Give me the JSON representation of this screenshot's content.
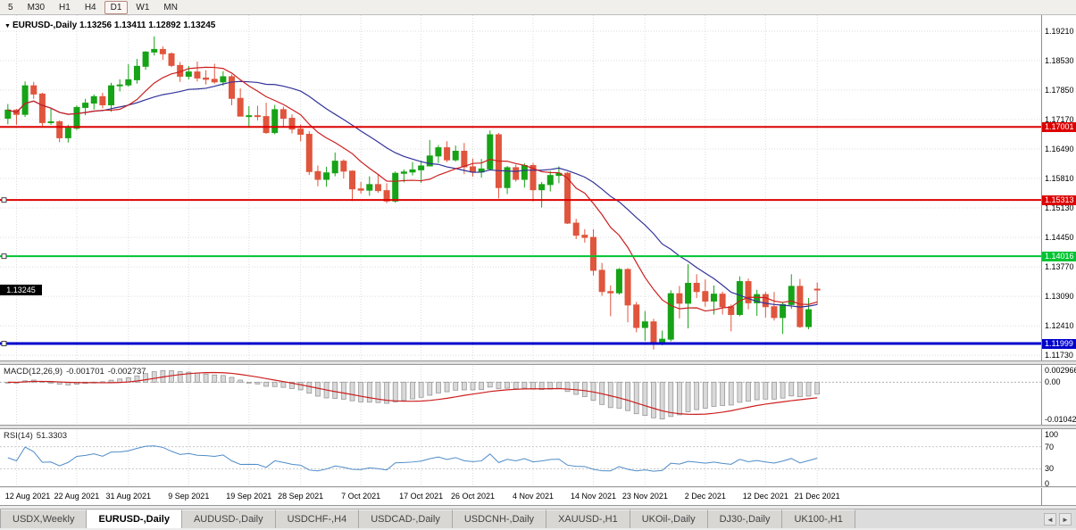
{
  "icons": {
    "caret": "▼",
    "tab_scroll_left": "◄",
    "tab_scroll_right": "►"
  },
  "toolbar": {
    "timeframes": [
      "5",
      "M30",
      "H1",
      "H4",
      "D1",
      "W1",
      "MN"
    ],
    "active": "D1"
  },
  "header": {
    "symbol_text": "EURUSD-,Daily",
    "values_text": "1.13256 1.13411 1.12892 1.13245"
  },
  "colors": {
    "up": "#17a317",
    "down": "#e0553d",
    "ma_fast": "#cc1f1f",
    "ma_slow": "#32329b",
    "macd_hist_fill": "#d9d9d9",
    "macd_hist_stroke": "#989898",
    "macd_signal": "#cc1f1f",
    "rsi_line": "#4f8cc8",
    "grid": "#dcdcdc",
    "badge_black": "#000000"
  },
  "chart_data": {
    "type": "candlestick",
    "symbol": "EURUSD-",
    "timeframe": "Daily",
    "last_bar": {
      "open": "1.13256",
      "high": "1.13411",
      "low": "1.12892",
      "close": "1.13245"
    },
    "current_price": 1.13245,
    "price_ticks": [
      "1.19210",
      "1.18530",
      "1.17850",
      "1.17170",
      "1.16490",
      "1.15810",
      "1.15130",
      "1.14450",
      "1.13770",
      "1.13090",
      "1.12410",
      "1.11730"
    ],
    "x_labels": [
      {
        "text": "12 Aug 2021",
        "i": 1
      },
      {
        "text": "22 Aug 2021",
        "i": 8
      },
      {
        "text": "31 Aug 2021",
        "i": 14
      },
      {
        "text": "9 Sep 2021",
        "i": 21
      },
      {
        "text": "19 Sep 2021",
        "i": 28
      },
      {
        "text": "28 Sep 2021",
        "i": 34
      },
      {
        "text": "7 Oct 2021",
        "i": 41
      },
      {
        "text": "17 Oct 2021",
        "i": 48
      },
      {
        "text": "26 Oct 2021",
        "i": 54
      },
      {
        "text": "4 Nov 2021",
        "i": 61
      },
      {
        "text": "14 Nov 2021",
        "i": 68
      },
      {
        "text": "23 Nov 2021",
        "i": 74
      },
      {
        "text": "2 Dec 2021",
        "i": 81
      },
      {
        "text": "12 Dec 2021",
        "i": 88
      },
      {
        "text": "21 Dec 2021",
        "i": 94
      }
    ],
    "horizontal_lines": [
      {
        "price": 1.17001,
        "label": "1.17001",
        "color": "#dd0000",
        "width": 2,
        "handles": false
      },
      {
        "price": 1.15313,
        "label": "1.15313",
        "color": "#dd0000",
        "width": 2,
        "handles": true
      },
      {
        "price": 1.14016,
        "label": "1.14016",
        "color": "#00c433",
        "width": 2,
        "handles": true
      },
      {
        "price": 1.11999,
        "label": "1.11999",
        "color": "#0000cc",
        "width": 3,
        "handles": true
      }
    ],
    "moving_averages": [
      {
        "period": 10,
        "color": "#cc1f1f"
      },
      {
        "period": 20,
        "color": "#32329b"
      }
    ],
    "macd": {
      "label": "MACD(12,26,9)",
      "value": "-0.001701",
      "signal_value": "-0.002737",
      "axis_max": "0.002966",
      "axis_zero": "0.00",
      "axis_min": "-0.01042"
    },
    "rsi": {
      "label": "RSI(14)",
      "value": "51.3303",
      "levels": [
        70,
        30
      ],
      "axis_labels": [
        "100",
        "70",
        "30",
        "0"
      ]
    },
    "ohlc_format": [
      "open",
      "high",
      "low",
      "close"
    ],
    "ohlc": [
      [
        1.172,
        1.1753,
        1.1706,
        1.1739
      ],
      [
        1.1739,
        1.1742,
        1.1705,
        1.1729
      ],
      [
        1.1729,
        1.1805,
        1.1723,
        1.1795
      ],
      [
        1.1795,
        1.1804,
        1.1765,
        1.1776
      ],
      [
        1.1776,
        1.1779,
        1.1702,
        1.171
      ],
      [
        1.171,
        1.1742,
        1.1705,
        1.1712
      ],
      [
        1.1712,
        1.1715,
        1.1665,
        1.1675
      ],
      [
        1.1675,
        1.1705,
        1.1664,
        1.1697
      ],
      [
        1.1697,
        1.175,
        1.1693,
        1.1745
      ],
      [
        1.1745,
        1.1765,
        1.1727,
        1.1755
      ],
      [
        1.1755,
        1.1775,
        1.174,
        1.177
      ],
      [
        1.177,
        1.1779,
        1.1743,
        1.1751
      ],
      [
        1.1751,
        1.1802,
        1.1735,
        1.1795
      ],
      [
        1.1795,
        1.181,
        1.1782,
        1.1797
      ],
      [
        1.1797,
        1.1845,
        1.1793,
        1.1809
      ],
      [
        1.1809,
        1.1857,
        1.18,
        1.184
      ],
      [
        1.184,
        1.1875,
        1.1832,
        1.1873
      ],
      [
        1.1873,
        1.1909,
        1.1865,
        1.1879
      ],
      [
        1.1879,
        1.1886,
        1.1855,
        1.1869
      ],
      [
        1.1869,
        1.1872,
        1.1838,
        1.1842
      ],
      [
        1.1842,
        1.185,
        1.1804,
        1.1817
      ],
      [
        1.1817,
        1.1841,
        1.181,
        1.1827
      ],
      [
        1.1827,
        1.1851,
        1.1805,
        1.1813
      ],
      [
        1.1813,
        1.1831,
        1.1798,
        1.181
      ],
      [
        1.181,
        1.1846,
        1.18,
        1.1804
      ],
      [
        1.1804,
        1.1829,
        1.1795,
        1.1816
      ],
      [
        1.1816,
        1.1821,
        1.175,
        1.1766
      ],
      [
        1.1766,
        1.1789,
        1.1724,
        1.1725
      ],
      [
        1.1725,
        1.1748,
        1.17,
        1.1726
      ],
      [
        1.1726,
        1.1749,
        1.1715,
        1.1724
      ],
      [
        1.1724,
        1.1756,
        1.1684,
        1.1687
      ],
      [
        1.1687,
        1.1751,
        1.1683,
        1.174
      ],
      [
        1.174,
        1.1747,
        1.1701,
        1.172
      ],
      [
        1.172,
        1.1729,
        1.1685,
        1.1695
      ],
      [
        1.1695,
        1.1706,
        1.1667,
        1.1683
      ],
      [
        1.1683,
        1.169,
        1.1589,
        1.1597
      ],
      [
        1.1597,
        1.1611,
        1.1563,
        1.1579
      ],
      [
        1.1579,
        1.1608,
        1.1562,
        1.1594
      ],
      [
        1.1594,
        1.1641,
        1.1586,
        1.1621
      ],
      [
        1.1621,
        1.1625,
        1.1581,
        1.1598
      ],
      [
        1.1598,
        1.16,
        1.1529,
        1.1557
      ],
      [
        1.1557,
        1.1573,
        1.1546,
        1.1554
      ],
      [
        1.1554,
        1.1586,
        1.1541,
        1.1567
      ],
      [
        1.1567,
        1.1591,
        1.1548,
        1.1553
      ],
      [
        1.1553,
        1.157,
        1.1524,
        1.1529
      ],
      [
        1.1529,
        1.1597,
        1.1525,
        1.1593
      ],
      [
        1.1593,
        1.1602,
        1.1572,
        1.1596
      ],
      [
        1.1596,
        1.1619,
        1.1588,
        1.1601
      ],
      [
        1.1601,
        1.1622,
        1.1571,
        1.161
      ],
      [
        1.161,
        1.167,
        1.1609,
        1.1633
      ],
      [
        1.1633,
        1.1658,
        1.1617,
        1.1652
      ],
      [
        1.1652,
        1.1667,
        1.1619,
        1.1624
      ],
      [
        1.1624,
        1.1657,
        1.162,
        1.1644
      ],
      [
        1.1644,
        1.1663,
        1.1591,
        1.1608
      ],
      [
        1.1608,
        1.1627,
        1.1585,
        1.1596
      ],
      [
        1.1596,
        1.1626,
        1.1583,
        1.1603
      ],
      [
        1.1603,
        1.1692,
        1.1601,
        1.1682
      ],
      [
        1.1682,
        1.1686,
        1.1535,
        1.156
      ],
      [
        1.156,
        1.161,
        1.1545,
        1.1606
      ],
      [
        1.1606,
        1.1613,
        1.1574,
        1.1579
      ],
      [
        1.1579,
        1.1616,
        1.156,
        1.1611
      ],
      [
        1.1611,
        1.1617,
        1.1528,
        1.1555
      ],
      [
        1.1555,
        1.1573,
        1.1514,
        1.1567
      ],
      [
        1.1567,
        1.1598,
        1.1551,
        1.1588
      ],
      [
        1.1588,
        1.1609,
        1.157,
        1.1593
      ],
      [
        1.1593,
        1.1596,
        1.1476,
        1.1478
      ],
      [
        1.1478,
        1.1488,
        1.1441,
        1.145
      ],
      [
        1.145,
        1.1464,
        1.1433,
        1.1445
      ],
      [
        1.1445,
        1.1464,
        1.1357,
        1.1369
      ],
      [
        1.1369,
        1.1386,
        1.131,
        1.132
      ],
      [
        1.132,
        1.1334,
        1.1263,
        1.1317
      ],
      [
        1.1317,
        1.1374,
        1.1313,
        1.1371
      ],
      [
        1.1371,
        1.1374,
        1.1249,
        1.1289
      ],
      [
        1.1289,
        1.1296,
        1.1226,
        1.1237
      ],
      [
        1.1237,
        1.1275,
        1.1206,
        1.125
      ],
      [
        1.125,
        1.1257,
        1.1186,
        1.12
      ],
      [
        1.12,
        1.123,
        1.1196,
        1.121
      ],
      [
        1.121,
        1.1323,
        1.1205,
        1.1315
      ],
      [
        1.1315,
        1.1333,
        1.1258,
        1.1293
      ],
      [
        1.1293,
        1.1383,
        1.1235,
        1.1339
      ],
      [
        1.1339,
        1.136,
        1.1305,
        1.132
      ],
      [
        1.132,
        1.1348,
        1.1285,
        1.1298
      ],
      [
        1.1298,
        1.1334,
        1.1267,
        1.1314
      ],
      [
        1.1314,
        1.132,
        1.1267,
        1.1285
      ],
      [
        1.1285,
        1.129,
        1.1228,
        1.1267
      ],
      [
        1.1267,
        1.1355,
        1.1263,
        1.1343
      ],
      [
        1.1343,
        1.135,
        1.1279,
        1.1294
      ],
      [
        1.1294,
        1.1324,
        1.1264,
        1.1313
      ],
      [
        1.1313,
        1.1319,
        1.126,
        1.1285
      ],
      [
        1.1285,
        1.1319,
        1.1253,
        1.126
      ],
      [
        1.126,
        1.1296,
        1.1222,
        1.129
      ],
      [
        1.129,
        1.136,
        1.128,
        1.1332
      ],
      [
        1.1332,
        1.1349,
        1.1236,
        1.1239
      ],
      [
        1.1239,
        1.1305,
        1.1233,
        1.1278
      ],
      [
        1.13256,
        1.13411,
        1.12892,
        1.13245
      ]
    ]
  },
  "tabs": {
    "items": [
      {
        "label": "USDX,Weekly"
      },
      {
        "label": "EURUSD-,Daily",
        "active": true
      },
      {
        "label": "AUDUSD-,Daily"
      },
      {
        "label": "USDCHF-,H4"
      },
      {
        "label": "USDCAD-,Daily"
      },
      {
        "label": "USDCNH-,Daily"
      },
      {
        "label": "XAUUSD-,H1"
      },
      {
        "label": "UKOil-,Daily"
      },
      {
        "label": "DJ30-,Daily"
      },
      {
        "label": "UK100-,H1"
      }
    ]
  }
}
